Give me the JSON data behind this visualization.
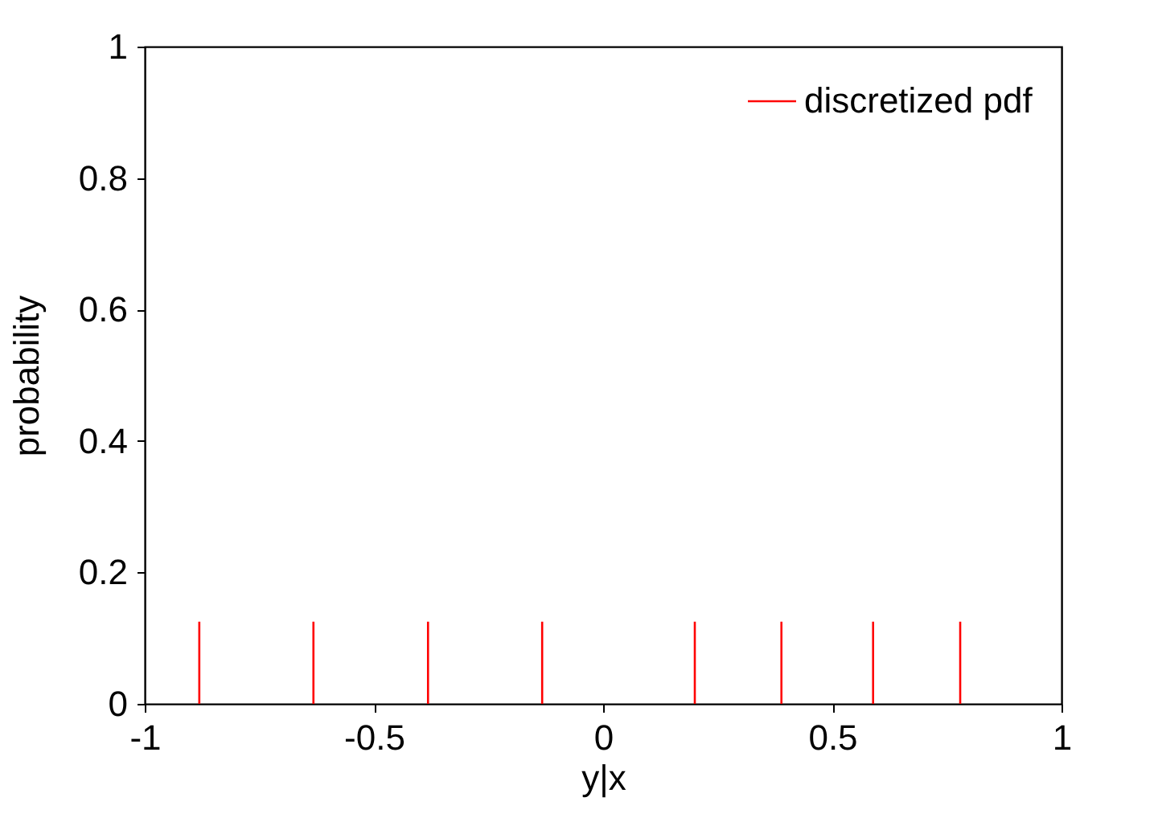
{
  "chart_data": {
    "type": "bar",
    "xlabel": "y|x",
    "ylabel": "probability",
    "x": [
      -0.881,
      -0.632,
      -0.382,
      -0.133,
      0.2,
      0.389,
      0.589,
      0.779
    ],
    "series": [
      {
        "name": "discretized pdf",
        "color": "#ff0000",
        "values": [
          0.125,
          0.125,
          0.125,
          0.125,
          0.125,
          0.125,
          0.125,
          0.125
        ]
      }
    ],
    "xlim": [
      -1,
      1
    ],
    "xticks": [
      -1,
      -0.5,
      0,
      0.5,
      1
    ],
    "ylim": [
      0,
      1
    ],
    "yticks": [
      0,
      0.2,
      0.4,
      0.6,
      0.8,
      1
    ],
    "legend": "top right",
    "grid": false
  }
}
